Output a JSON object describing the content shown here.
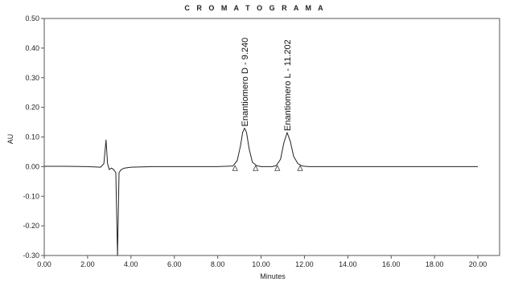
{
  "chart_data": {
    "type": "line",
    "title": "C R O M A T O G R A M A",
    "xlabel": "Minutes",
    "ylabel": "AU",
    "xlim": [
      0,
      21
    ],
    "ylim": [
      -0.3,
      0.5
    ],
    "x_ticks": [
      0,
      2,
      4,
      6,
      8,
      10,
      12,
      14,
      16,
      18,
      20
    ],
    "x_tick_labels": [
      "0.00",
      "2.00",
      "4.00",
      "6.00",
      "8.00",
      "10.00",
      "12.00",
      "14.00",
      "16.00",
      "18.00",
      "20.00"
    ],
    "y_ticks": [
      0.5,
      0.4,
      0.3,
      0.2,
      0.1,
      0.0,
      -0.1,
      -0.2,
      -0.3
    ],
    "y_tick_labels": [
      "0.50",
      "0.40",
      "0.30",
      "0.20",
      "0.10",
      "0.00",
      "-0.10",
      "-0.20",
      "-0.30"
    ],
    "grid": false,
    "series": [
      {
        "x": [
          0,
          1.0,
          2.0,
          2.6,
          2.75,
          2.85,
          2.92,
          3.0,
          3.1,
          3.2,
          3.3,
          3.38,
          3.45,
          3.55,
          3.7,
          4.0,
          5.0,
          6.0,
          7.0,
          8.0,
          8.7,
          8.9,
          9.05,
          9.15,
          9.24,
          9.33,
          9.45,
          9.6,
          9.8,
          10.0,
          10.5,
          10.7,
          10.9,
          11.05,
          11.202,
          11.35,
          11.5,
          11.7,
          11.9,
          12.2,
          13.0,
          14.0,
          16.0,
          18.0,
          20.0
        ],
        "y": [
          0.001,
          0.001,
          0.0,
          -0.002,
          0.01,
          0.09,
          0.01,
          -0.01,
          -0.005,
          -0.01,
          -0.02,
          -0.3,
          -0.02,
          -0.01,
          -0.005,
          -0.002,
          0.0,
          0.0,
          0.0,
          0.0,
          0.002,
          0.02,
          0.07,
          0.115,
          0.13,
          0.115,
          0.06,
          0.015,
          0.003,
          0.0,
          0.0,
          0.003,
          0.025,
          0.08,
          0.115,
          0.085,
          0.035,
          0.01,
          0.002,
          0.0,
          0.0,
          0.0,
          0.0,
          0.0,
          0.0
        ]
      }
    ],
    "peaks": [
      {
        "label": "Enantiomero D - 9.240",
        "x": 9.24,
        "y": 0.13
      },
      {
        "label": "Enantiomero L - 11.202",
        "x": 11.202,
        "y": 0.115
      }
    ],
    "integration_markers": [
      8.8,
      9.75,
      10.75,
      11.8
    ]
  }
}
